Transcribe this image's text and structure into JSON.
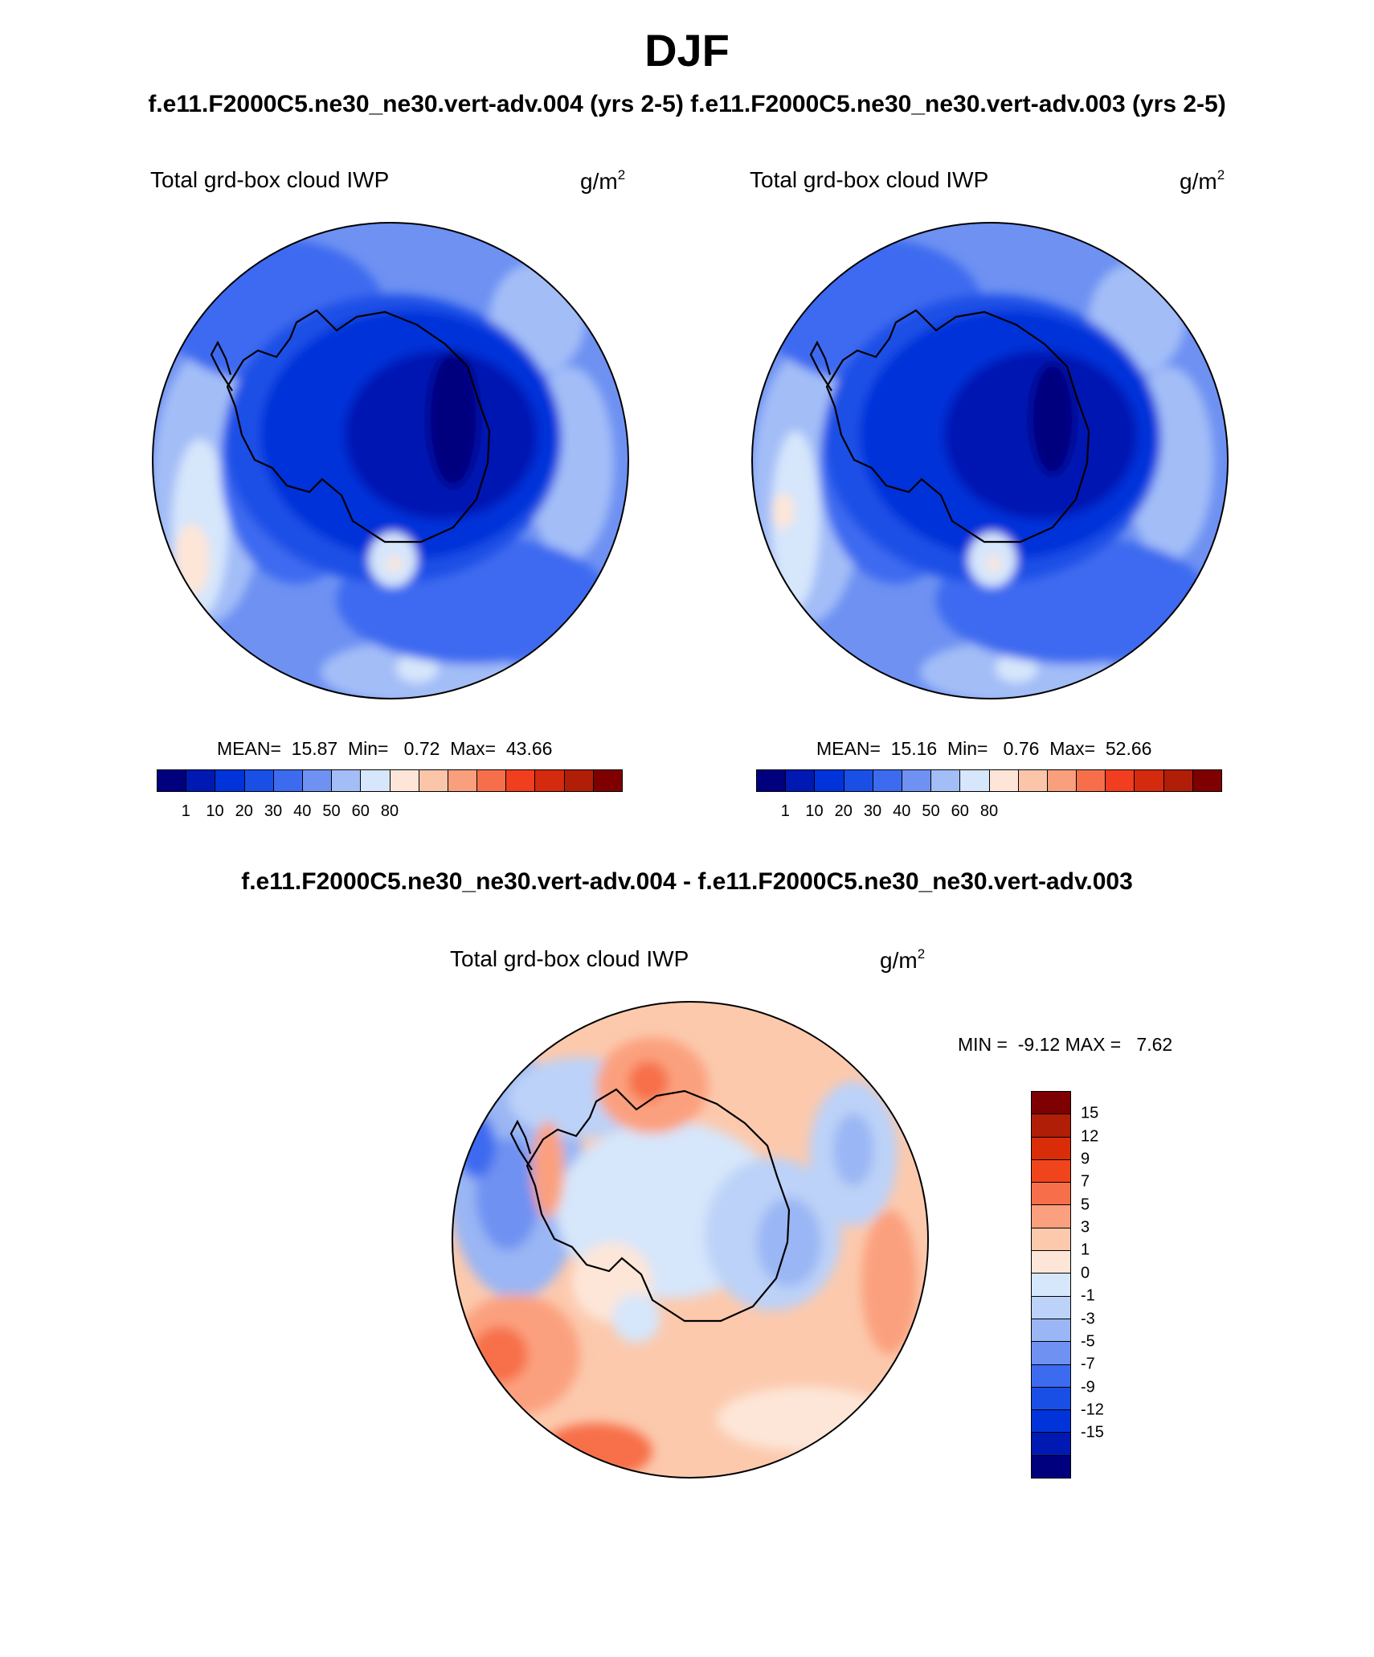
{
  "title": "DJF",
  "subtitle_top": "f.e11.F2000C5.ne30_ne30.vert-adv.004 (yrs 2-5)  f.e11.F2000C5.ne30_ne30.vert-adv.003 (yrs 2-5)",
  "subtitle_diff": "f.e11.F2000C5.ne30_ne30.vert-adv.004 - f.e11.F2000C5.ne30_ne30.vert-adv.003",
  "panels": [
    {
      "variable": "Total grd-box cloud IWP",
      "units_base": "g/m",
      "units_exp": "2",
      "stats": "MEAN=  15.87  Min=   0.72  Max=  43.66"
    },
    {
      "variable": "Total grd-box cloud IWP",
      "units_base": "g/m",
      "units_exp": "2",
      "stats": "MEAN=  15.16  Min=   0.76  Max=  52.66"
    },
    {
      "variable": "Total grd-box cloud IWP",
      "units_base": "g/m",
      "units_exp": "2",
      "stats": "MIN =  -9.12 MAX =   7.62"
    }
  ],
  "colorbar_main": {
    "colors": [
      "#00007f",
      "#0019b3",
      "#0033d9",
      "#1a4fe6",
      "#3d6bf0",
      "#6e91f2",
      "#a3bdf7",
      "#d6e6fb",
      "#fde6d8",
      "#fbc5aa",
      "#f99f7d",
      "#f76f4a",
      "#f03e1e",
      "#d42a0e",
      "#b01e08",
      "#7f0000"
    ],
    "ticks": [
      "1",
      "10",
      "20",
      "30",
      "40",
      "50",
      "60",
      "80"
    ]
  },
  "colorbar_diff": {
    "colors": [
      "#7f0000",
      "#b01e08",
      "#d92d0a",
      "#f0451c",
      "#f76f4a",
      "#fba07e",
      "#fcc9ad",
      "#fde6d8",
      "#d6e6fb",
      "#bcd2f8",
      "#9ab6f4",
      "#6e91f2",
      "#3d6bf0",
      "#1a4fe6",
      "#0033d9",
      "#0019b3",
      "#00007f"
    ],
    "ticks": [
      "15",
      "12",
      "9",
      "7",
      "5",
      "3",
      "1",
      "0",
      "-1",
      "-3",
      "-5",
      "-7",
      "-9",
      "-12",
      "-15"
    ]
  }
}
